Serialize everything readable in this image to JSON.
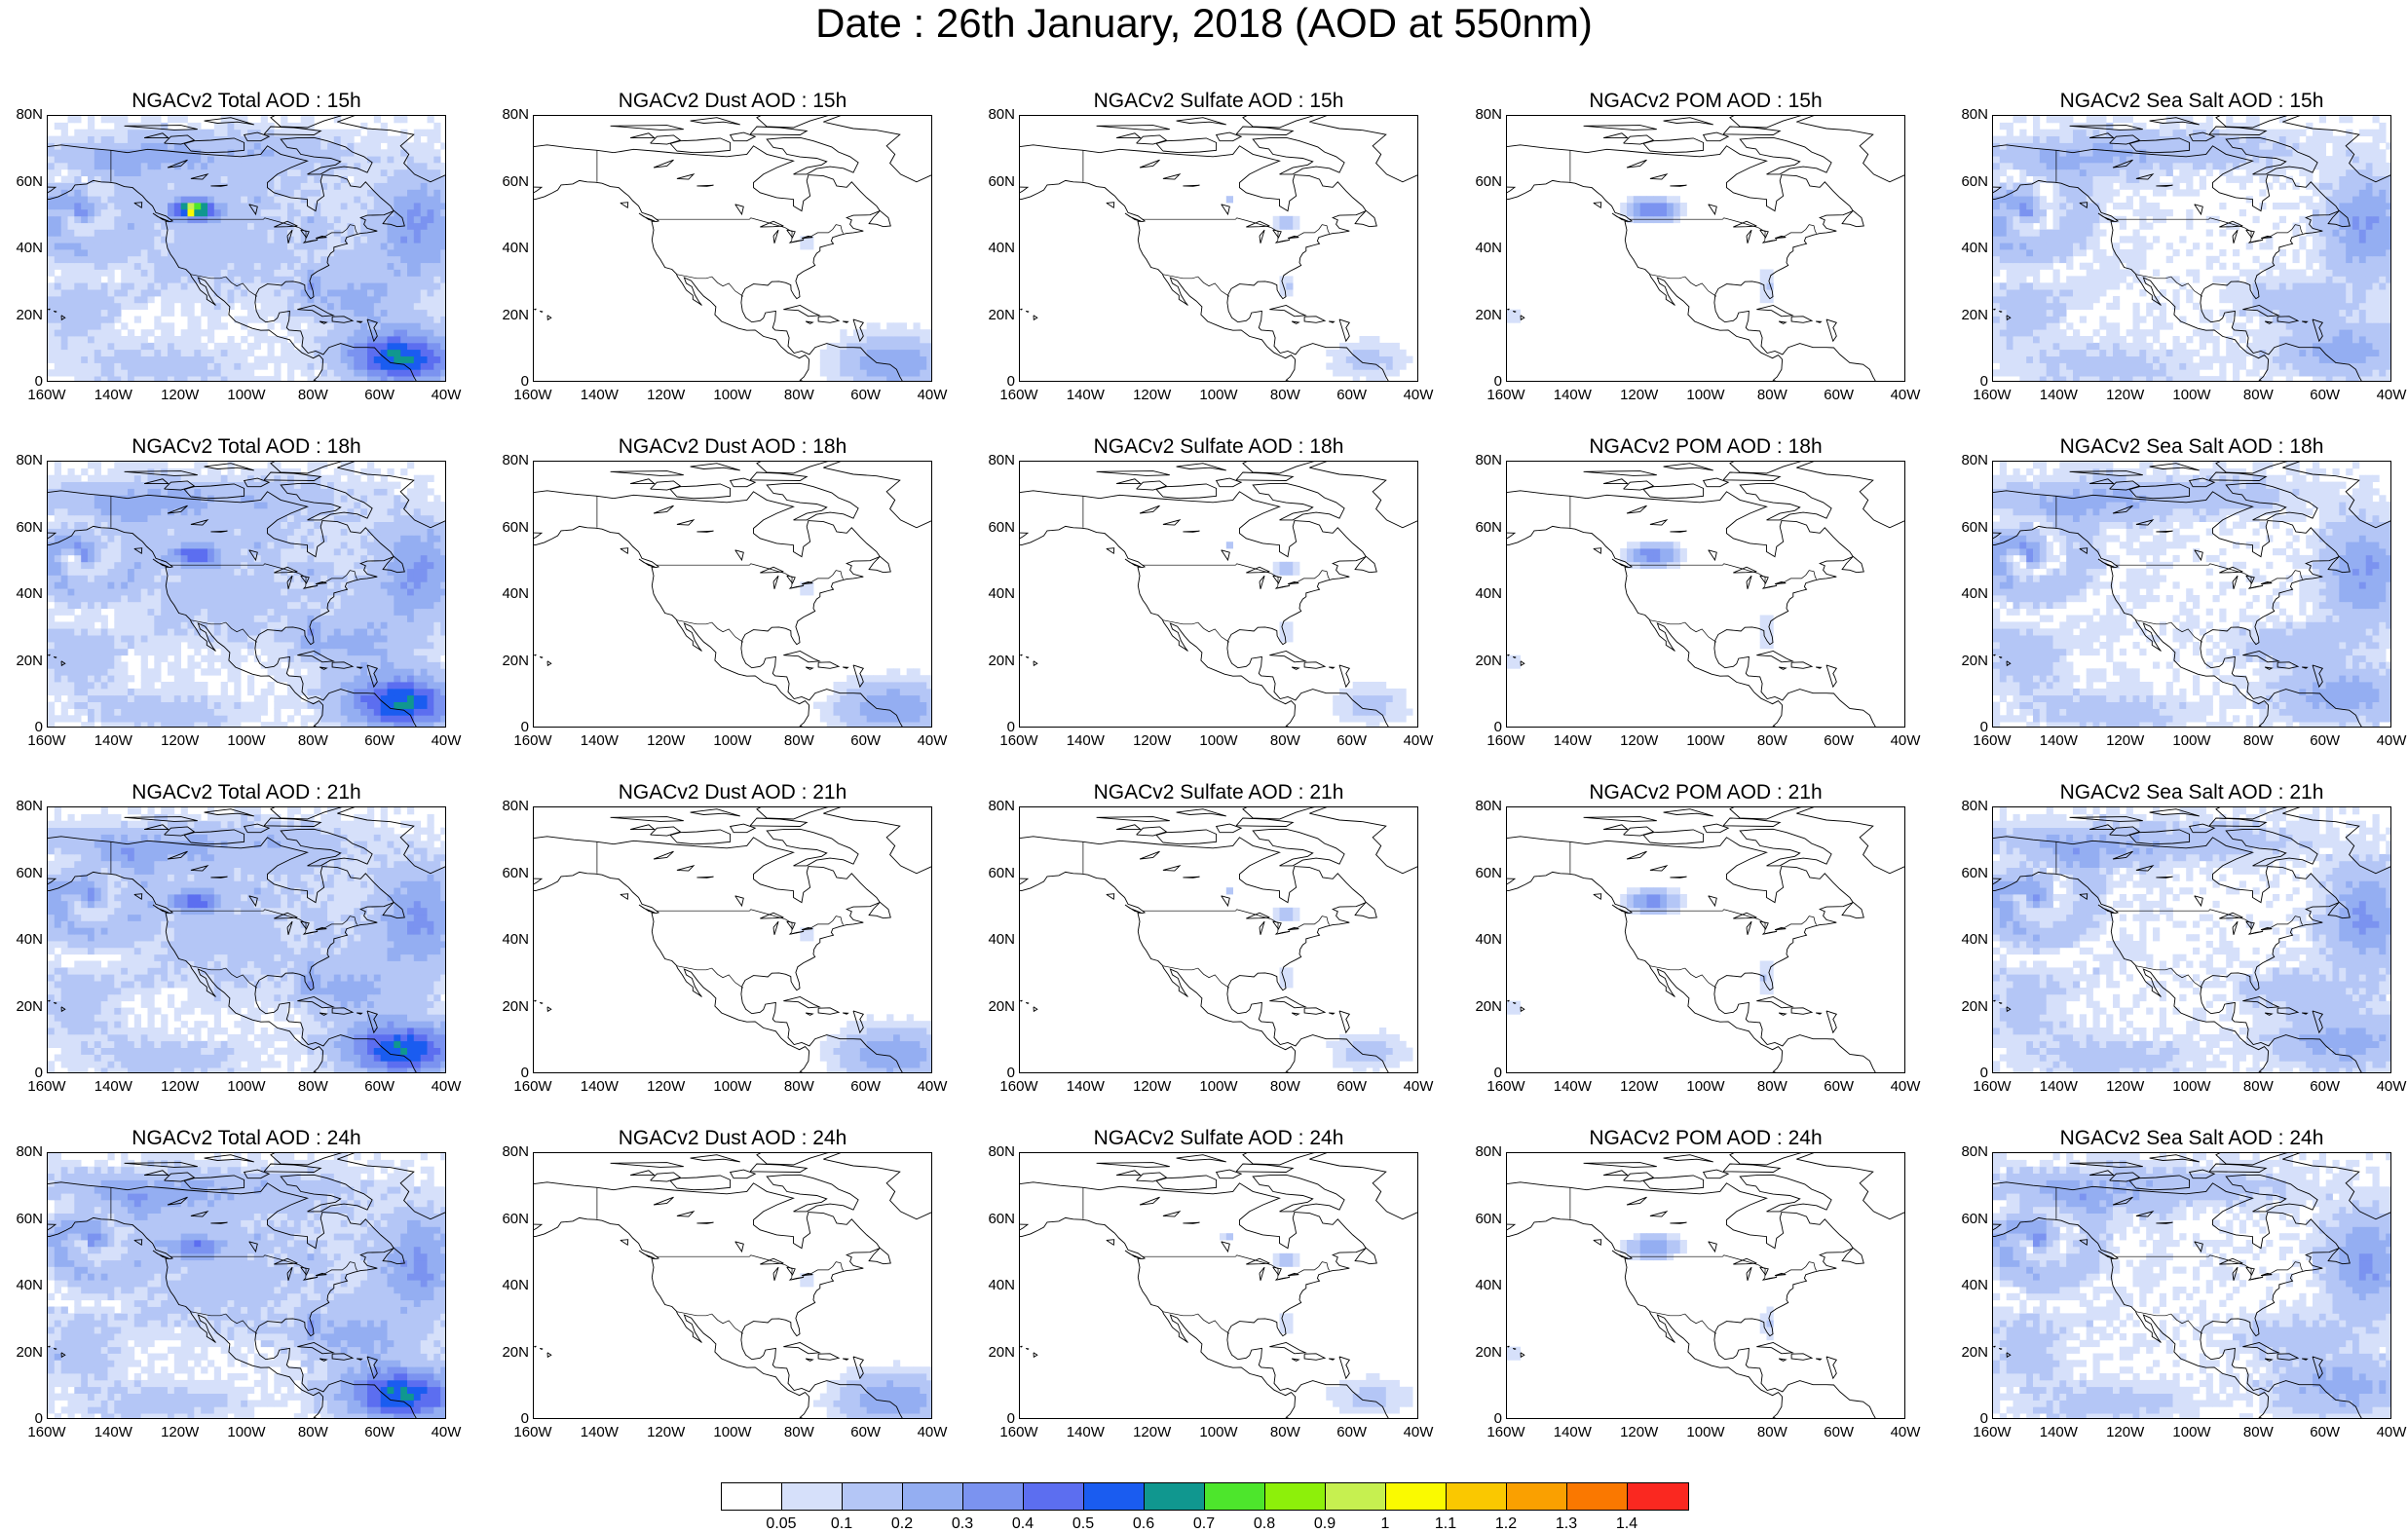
{
  "title": "Date : 26th January, 2018 (AOD at 550nm)",
  "axes": {
    "lat_labels": [
      "80N",
      "60N",
      "40N",
      "20N",
      "0"
    ],
    "lon_labels": [
      "160W",
      "140W",
      "120W",
      "100W",
      "80W",
      "60W",
      "40W"
    ],
    "lat_range": [
      0,
      80
    ],
    "lon_range": [
      -160,
      -40
    ]
  },
  "panels": [
    {
      "title": "NGACv2 Total AOD : 15h",
      "species": "total",
      "hour": 15
    },
    {
      "title": "NGACv2 Dust AOD : 15h",
      "species": "dust",
      "hour": 15
    },
    {
      "title": "NGACv2 Sulfate AOD : 15h",
      "species": "sulfate",
      "hour": 15
    },
    {
      "title": "NGACv2 POM AOD : 15h",
      "species": "pom",
      "hour": 15
    },
    {
      "title": "NGACv2 Sea Salt AOD : 15h",
      "species": "seasalt",
      "hour": 15
    },
    {
      "title": "NGACv2 Total AOD : 18h",
      "species": "total",
      "hour": 18
    },
    {
      "title": "NGACv2 Dust AOD : 18h",
      "species": "dust",
      "hour": 18
    },
    {
      "title": "NGACv2 Sulfate AOD : 18h",
      "species": "sulfate",
      "hour": 18
    },
    {
      "title": "NGACv2 POM AOD : 18h",
      "species": "pom",
      "hour": 18
    },
    {
      "title": "NGACv2 Sea Salt AOD : 18h",
      "species": "seasalt",
      "hour": 18
    },
    {
      "title": "NGACv2 Total AOD : 21h",
      "species": "total",
      "hour": 21
    },
    {
      "title": "NGACv2 Dust AOD : 21h",
      "species": "dust",
      "hour": 21
    },
    {
      "title": "NGACv2 Sulfate AOD : 21h",
      "species": "sulfate",
      "hour": 21
    },
    {
      "title": "NGACv2 POM AOD : 21h",
      "species": "pom",
      "hour": 21
    },
    {
      "title": "NGACv2 Sea Salt AOD : 21h",
      "species": "seasalt",
      "hour": 21
    },
    {
      "title": "NGACv2 Total AOD : 24h",
      "species": "total",
      "hour": 24
    },
    {
      "title": "NGACv2 Dust AOD : 24h",
      "species": "dust",
      "hour": 24
    },
    {
      "title": "NGACv2 Sulfate AOD : 24h",
      "species": "sulfate",
      "hour": 24
    },
    {
      "title": "NGACv2 POM AOD : 24h",
      "species": "pom",
      "hour": 24
    },
    {
      "title": "NGACv2 Sea Salt  AOD : 24h",
      "species": "seasalt",
      "hour": 24
    }
  ],
  "colorbar": {
    "labels": [
      "0.05",
      "0.1",
      "0.2",
      "0.3",
      "0.4",
      "0.5",
      "0.6",
      "0.7",
      "0.8",
      "0.9",
      "1",
      "1.1",
      "1.2",
      "1.3",
      "1.4"
    ],
    "colors": [
      "#ffffff",
      "#d6e0fa",
      "#b4c6f6",
      "#94aef2",
      "#7b93f0",
      "#5c6ef0",
      "#1a5cf0",
      "#10978f",
      "#4de62c",
      "#8df00a",
      "#c6f050",
      "#fafa00",
      "#fac800",
      "#faa000",
      "#fa7800",
      "#fa2820"
    ]
  }
}
